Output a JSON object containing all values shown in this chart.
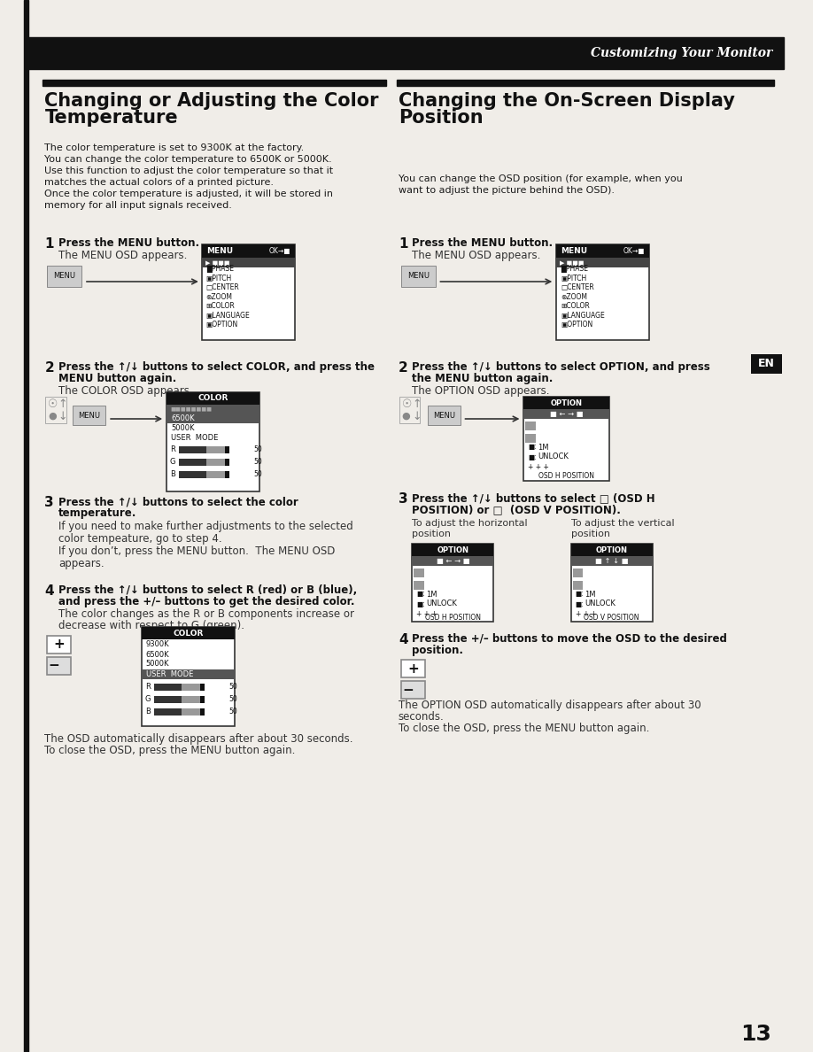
{
  "page_bg": "#f0ede8",
  "header_bar_color": "#111111",
  "header_text": "Customizing Your Monitor",
  "left_title_line1": "Changing or Adjusting the Color",
  "left_title_line2": "Temperature",
  "right_title_line1": "Changing the On-Screen Display",
  "right_title_line2": "Position",
  "left_intro": [
    "The color temperature is set to 9300K at the factory.",
    "You can change the color temperature to 6500K or 5000K.",
    "Use this function to adjust the color temperature so that it",
    "matches the actual colors of a printed picture.",
    "Once the color temperature is adjusted, it will be stored in",
    "memory for all input signals received."
  ],
  "right_intro": [
    "You can change the OSD position (for example, when you",
    "want to adjust the picture behind the OSD)."
  ],
  "step1_left_bold": "Press the MENU button.",
  "step1_left_body": "The MENU OSD appears.",
  "step2_left_bold1": "Press the ↑/↓ buttons to select COLOR, and press the",
  "step2_left_bold2": "MENU button again.",
  "step2_left_body": "The COLOR OSD appears.",
  "step3_left_bold1": "Press the ↑/↓ buttons to select the color",
  "step3_left_bold2": "temperature.",
  "step3_left_body": [
    "If you need to make further adjustments to the selected",
    "color tempeature, go to step 4.",
    "If you don’t, press the MENU button.  The MENU OSD",
    "appears."
  ],
  "step4_left_bold1": "Press the ↑/↓ buttons to select R (red) or B (blue),",
  "step4_left_bold2": "and press the +/– buttons to get the desired color.",
  "step4_left_body1": "The color changes as the R or B components increase or",
  "step4_left_body2": "decrease with respect to G (green).",
  "step1_right_bold": "Press the MENU button.",
  "step1_right_body": "The MENU OSD appears.",
  "step2_right_bold1": "Press the ↑/↓ buttons to select OPTION, and press",
  "step2_right_bold2": "the MENU button again.",
  "step2_right_body": "The OPTION OSD appears.",
  "step3_right_bold1": "Press the ↑/↓ buttons to select □ (OSD H",
  "step3_right_bold2": "POSITION) or □  (OSD V POSITION).",
  "step3_right_horiz": "To adjust the horizontal",
  "step3_right_horiz2": "position",
  "step3_right_vert": "To adjust the vertical",
  "step3_right_vert2": "position",
  "step4_right_bold1": "Press the +/– buttons to move the OSD to the desired",
  "step4_right_bold2": "position.",
  "footer_left1": "The OSD automatically disappears after about 30 seconds.",
  "footer_left2": "To close the OSD, press the MENU button again.",
  "footer_right1": "The OPTION OSD automatically disappears after about 30",
  "footer_right2": "seconds.",
  "footer_right3": "To close the OSD, press the MENU button again.",
  "page_num": "13",
  "en_label": "EN"
}
